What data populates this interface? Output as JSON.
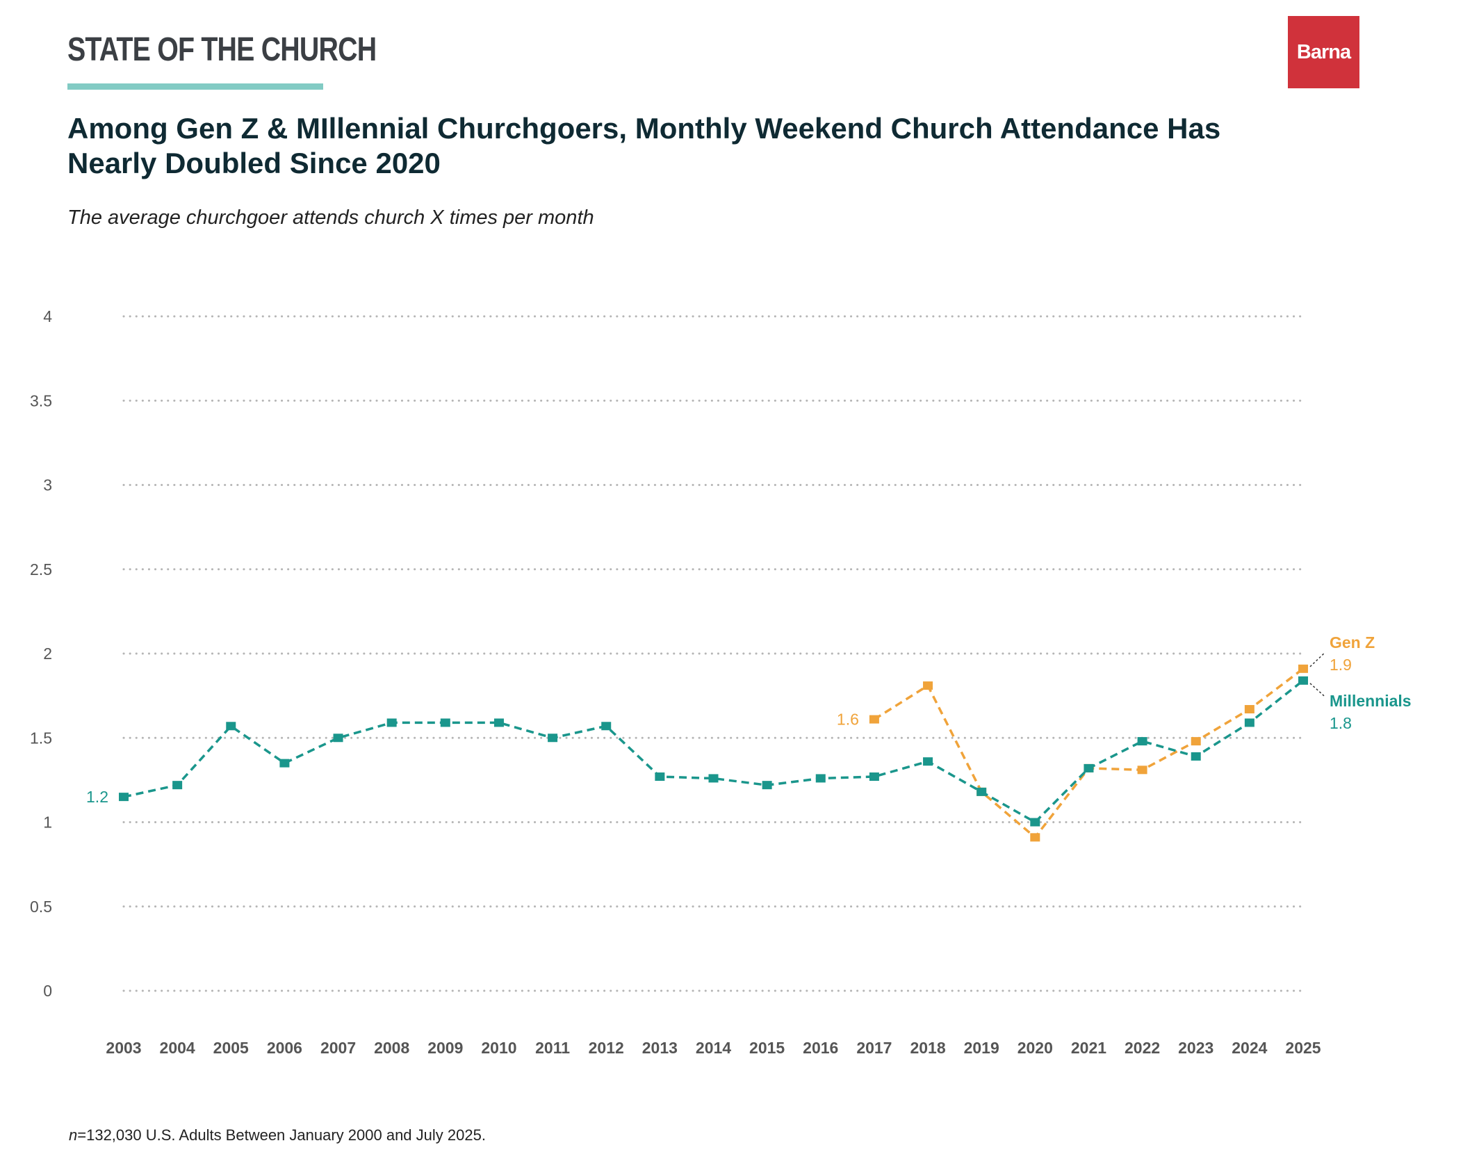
{
  "brand": {
    "title": "STATE OF THE CHURCH",
    "logo": "Barna",
    "rule_color": "#82cbc4",
    "logo_color": "#d0323b"
  },
  "headline": "Among Gen Z & MIllennial Churchgoers, Monthly Weekend Church Attendance Has Nearly Doubled Since 2020",
  "subtitle": "The average churchgoer attends church X times per month",
  "footnote": {
    "n_label": "n",
    "text": "=132,030 U.S. Adults Between January 2000 and July 2025."
  },
  "chart_data": {
    "type": "line",
    "title": "Among Gen Z & MIllennial Churchgoers, Monthly Weekend Church Attendance Has Nearly Doubled Since 2020",
    "subtitle": "The average churchgoer attends church X times per month",
    "xlabel": "",
    "ylabel": "",
    "ylim": [
      0,
      4
    ],
    "yticks": [
      0,
      0.5,
      1,
      1.5,
      2,
      2.5,
      3,
      3.5,
      4
    ],
    "ytick_labels": [
      "0",
      "0.5",
      "1",
      "1.5",
      "2",
      "2.5",
      "3",
      "3.5",
      "4"
    ],
    "grid": true,
    "x": [
      "2003",
      "2004",
      "2005",
      "2006",
      "2007",
      "2008",
      "2009",
      "2010",
      "2011",
      "2012",
      "2013",
      "2014",
      "2015",
      "2016",
      "2017",
      "2018",
      "2019",
      "2020",
      "2021",
      "2022",
      "2023",
      "2024",
      "2025"
    ],
    "series": [
      {
        "name": "Millennials",
        "color": "#1a968c",
        "values": [
          1.15,
          1.22,
          1.57,
          1.35,
          1.5,
          1.59,
          1.59,
          1.59,
          1.5,
          1.57,
          1.27,
          1.26,
          1.22,
          1.26,
          1.27,
          1.36,
          1.18,
          1.0,
          1.32,
          1.48,
          1.39,
          1.59,
          1.84
        ],
        "start_label": "1.2",
        "end_name": "Millennials",
        "end_value": "1.8"
      },
      {
        "name": "Gen Z",
        "color": "#f0a33a",
        "values": [
          null,
          null,
          null,
          null,
          null,
          null,
          null,
          null,
          null,
          null,
          null,
          null,
          null,
          null,
          1.61,
          1.81,
          1.18,
          0.91,
          1.32,
          1.31,
          1.48,
          1.67,
          1.91
        ],
        "start_label": "1.6",
        "end_name": "Gen Z",
        "end_value": "1.9"
      }
    ]
  }
}
